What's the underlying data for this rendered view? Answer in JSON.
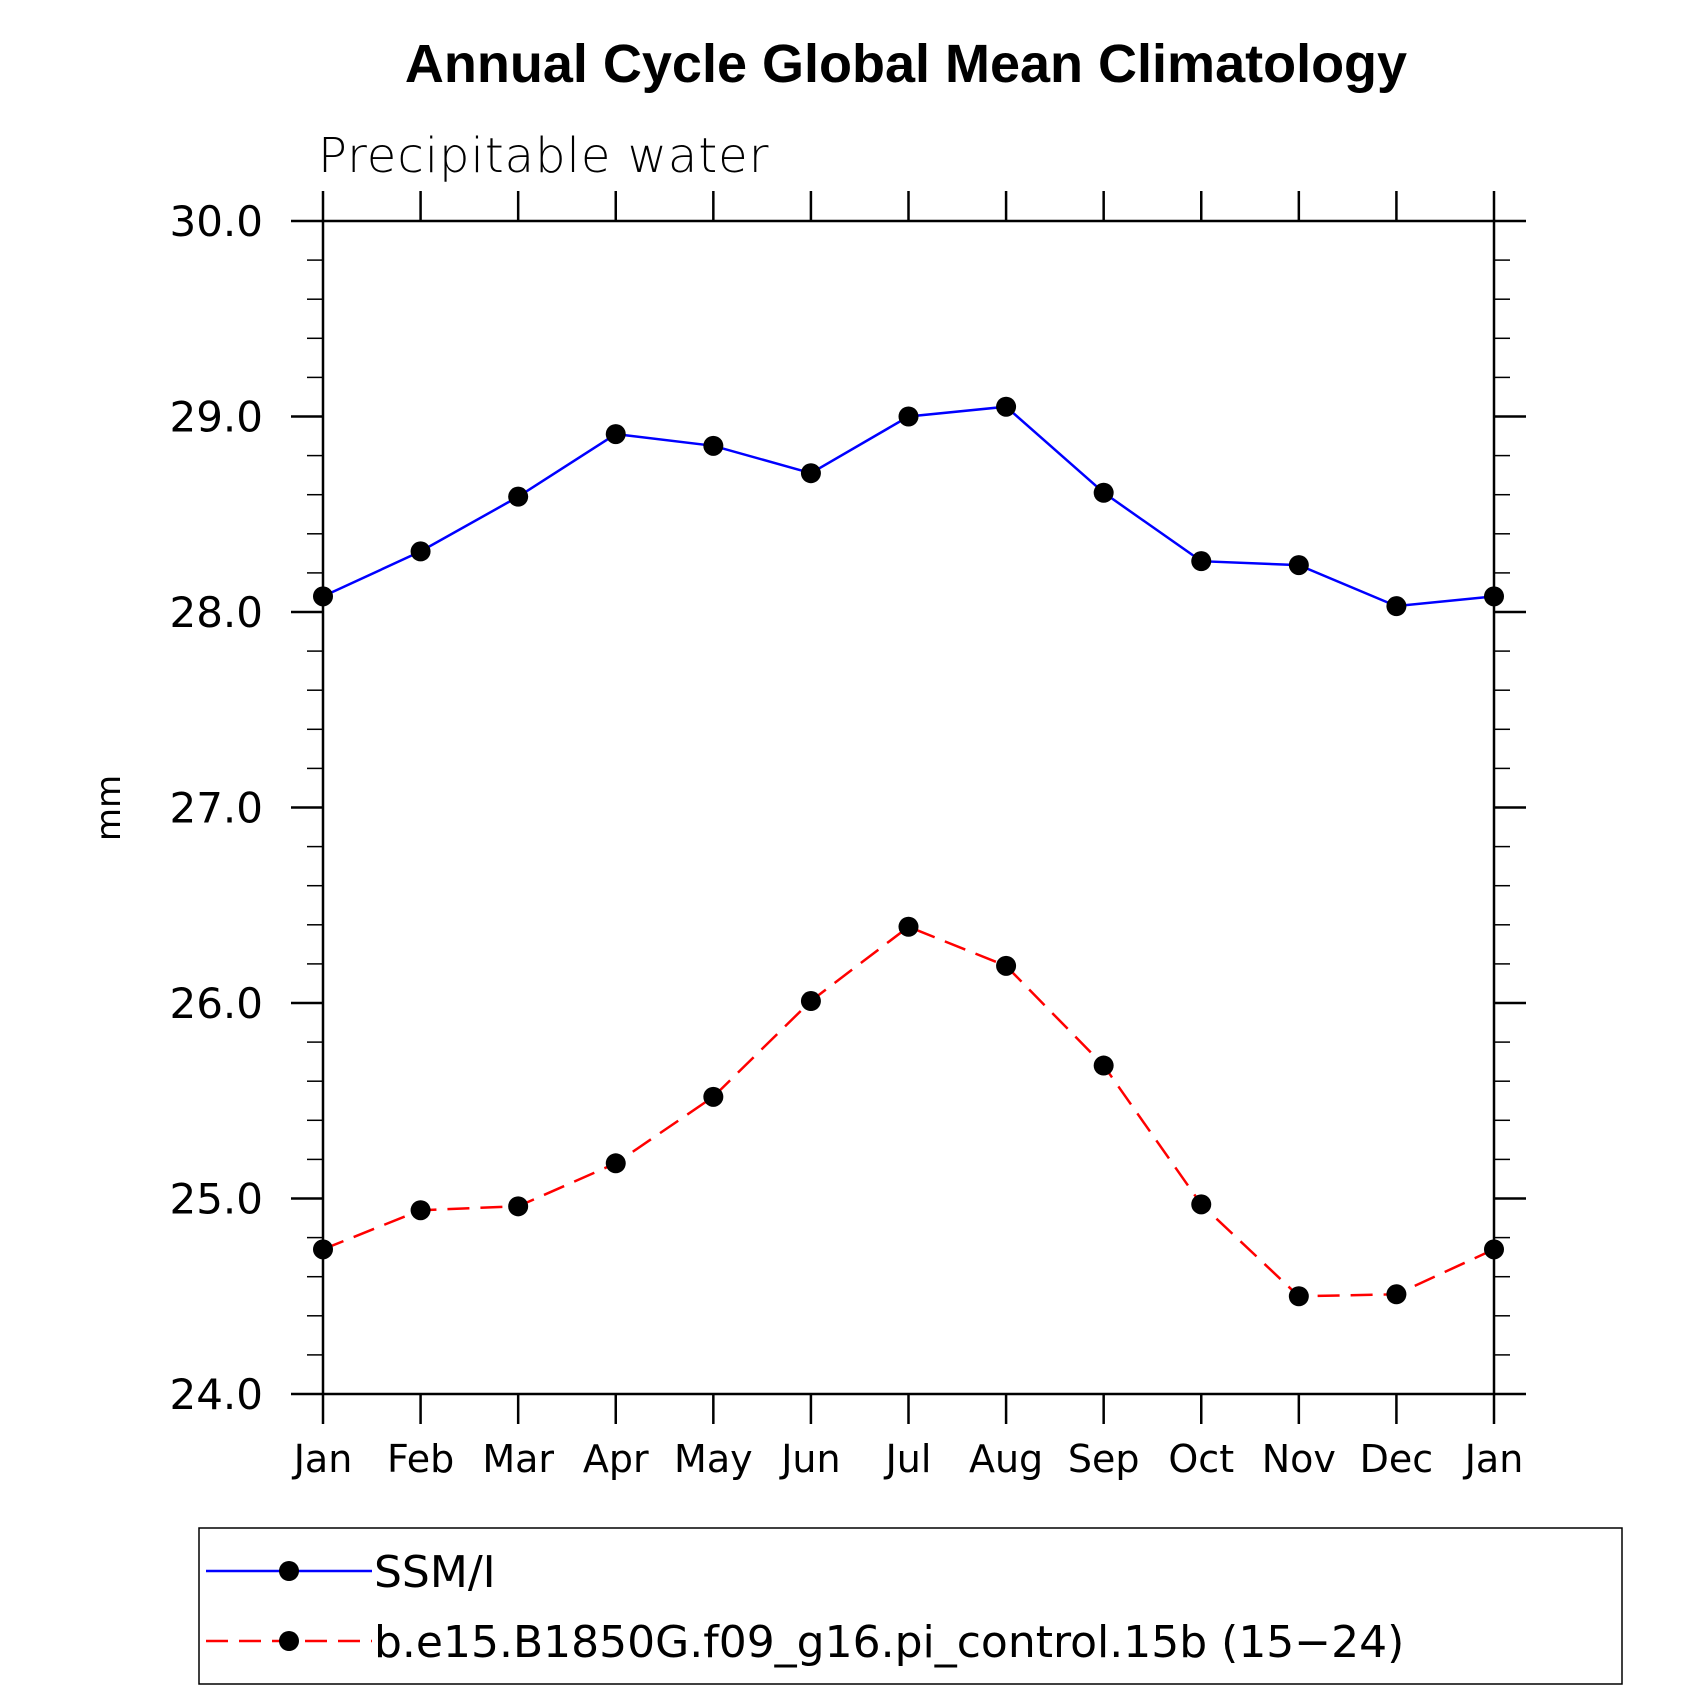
{
  "chart_data": {
    "type": "line",
    "title": "Annual Cycle Global Mean Climatology",
    "subtitle": "Precipitable water",
    "xlabel": "",
    "ylabel": "mm",
    "categories": [
      "Jan",
      "Feb",
      "Mar",
      "Apr",
      "May",
      "Jun",
      "Jul",
      "Aug",
      "Sep",
      "Oct",
      "Nov",
      "Dec",
      "Jan"
    ],
    "ylim": [
      24.0,
      30.0
    ],
    "yticks": [
      "24.0",
      "25.0",
      "26.0",
      "27.0",
      "28.0",
      "29.0",
      "30.0"
    ],
    "ytick_values": [
      24.0,
      25.0,
      26.0,
      27.0,
      28.0,
      29.0,
      30.0
    ],
    "y_minor_step": 0.2,
    "grid": false,
    "legend_position": "bottom",
    "series": [
      {
        "name": "SSM/I",
        "color": "#0000ff",
        "dash": "solid",
        "marker": "filled-circle",
        "values": [
          28.08,
          28.31,
          28.59,
          28.91,
          28.85,
          28.71,
          29.0,
          29.05,
          28.61,
          28.26,
          28.24,
          28.03,
          28.08
        ]
      },
      {
        "name": "b.e15.B1850G.f09_g16.pi_control.15b (15−24)",
        "color": "#ff0000",
        "dash": "dashed",
        "marker": "filled-circle",
        "values": [
          24.74,
          24.94,
          24.96,
          25.18,
          25.52,
          26.01,
          26.39,
          26.19,
          25.68,
          24.97,
          24.5,
          24.51,
          24.74
        ]
      }
    ]
  }
}
